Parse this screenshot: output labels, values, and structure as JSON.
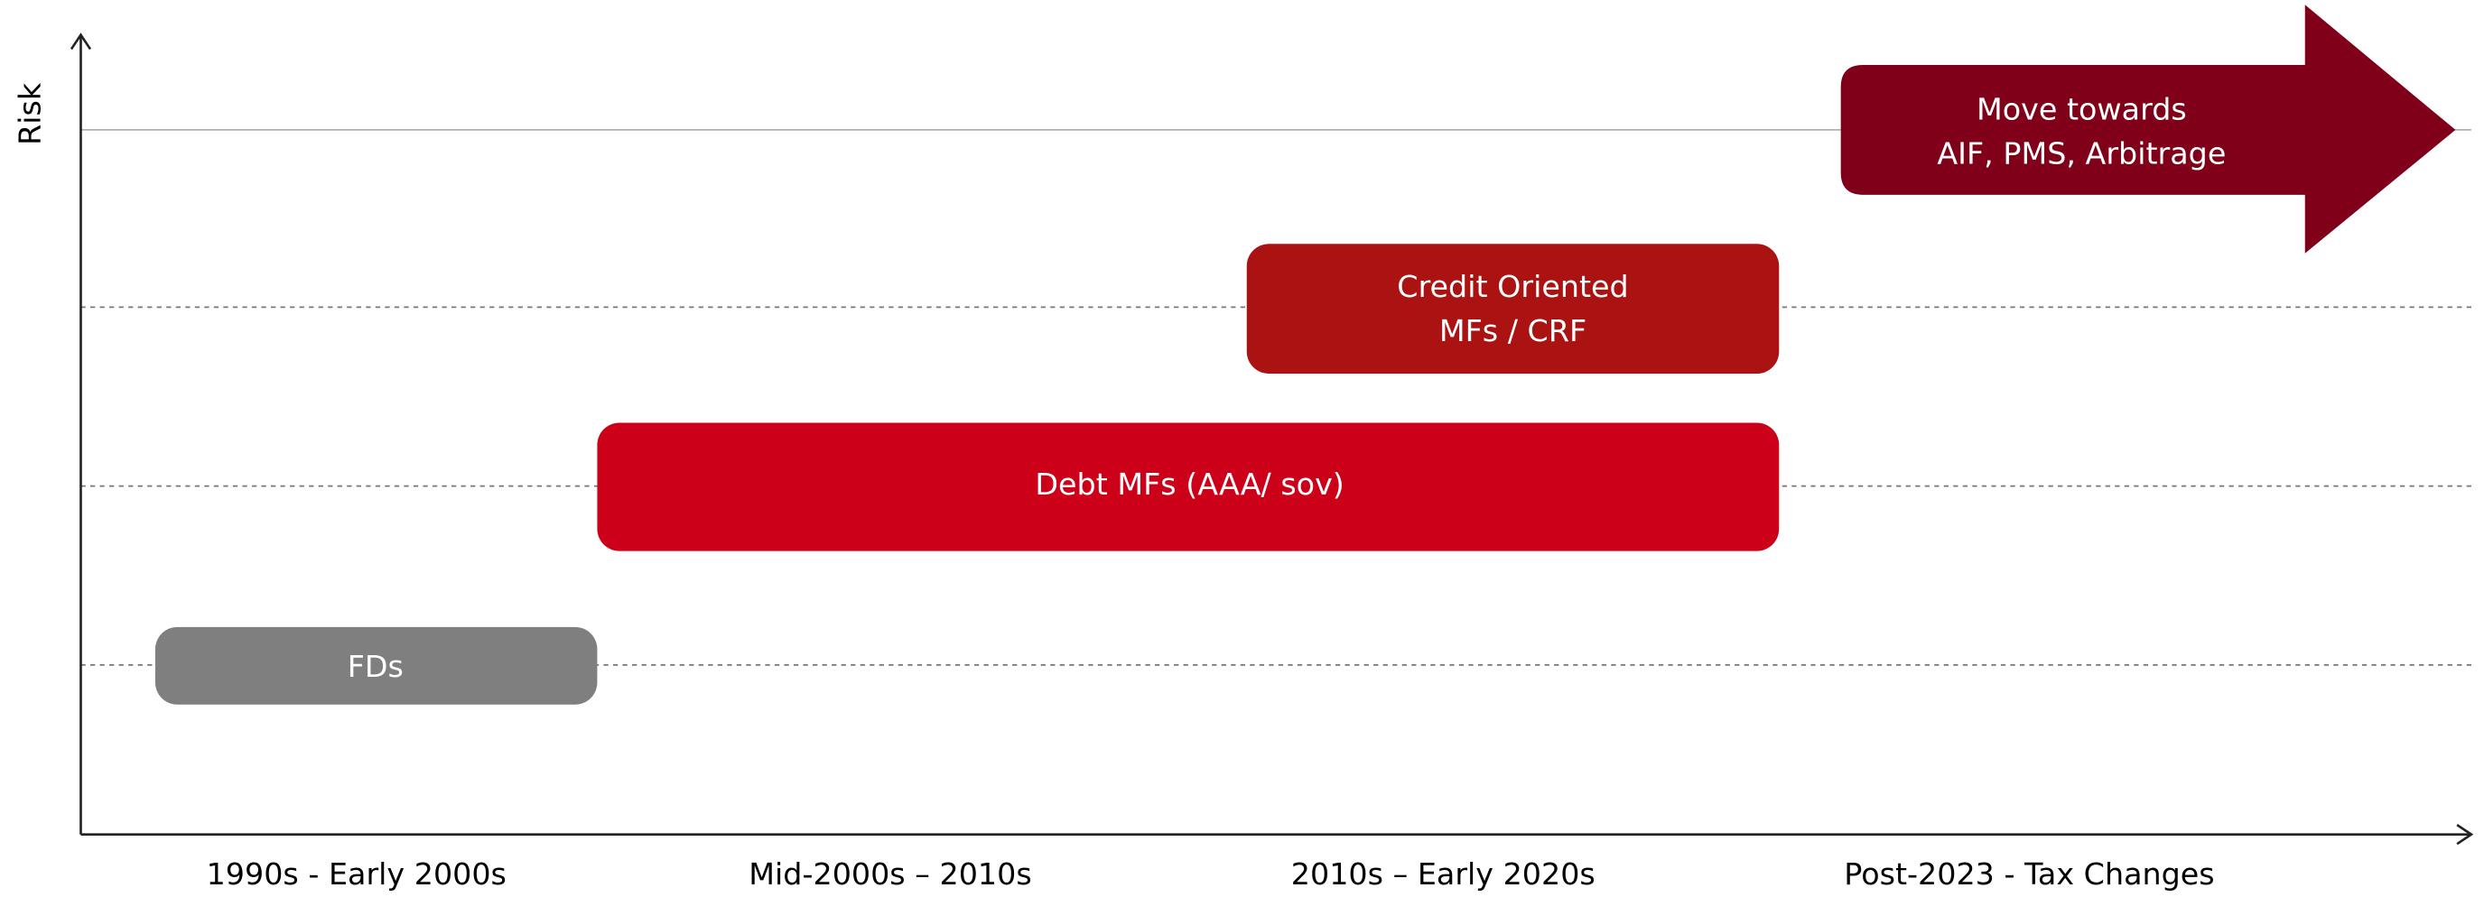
{
  "axis": {
    "y_label": "Risk"
  },
  "x_labels": [
    "1990s - Early 2000s",
    "Mid-2000s – 2010s",
    "2010s – Early 2020s",
    "Post-2023 - Tax Changes"
  ],
  "items": [
    {
      "lines": [
        "FDs"
      ]
    },
    {
      "lines": [
        "Debt MFs (AAA/ sov)"
      ]
    },
    {
      "lines": [
        "Credit Oriented",
        "MFs / CRF"
      ]
    },
    {
      "lines": [
        "Move towards",
        "AIF, PMS, Arbitrage"
      ]
    }
  ]
}
